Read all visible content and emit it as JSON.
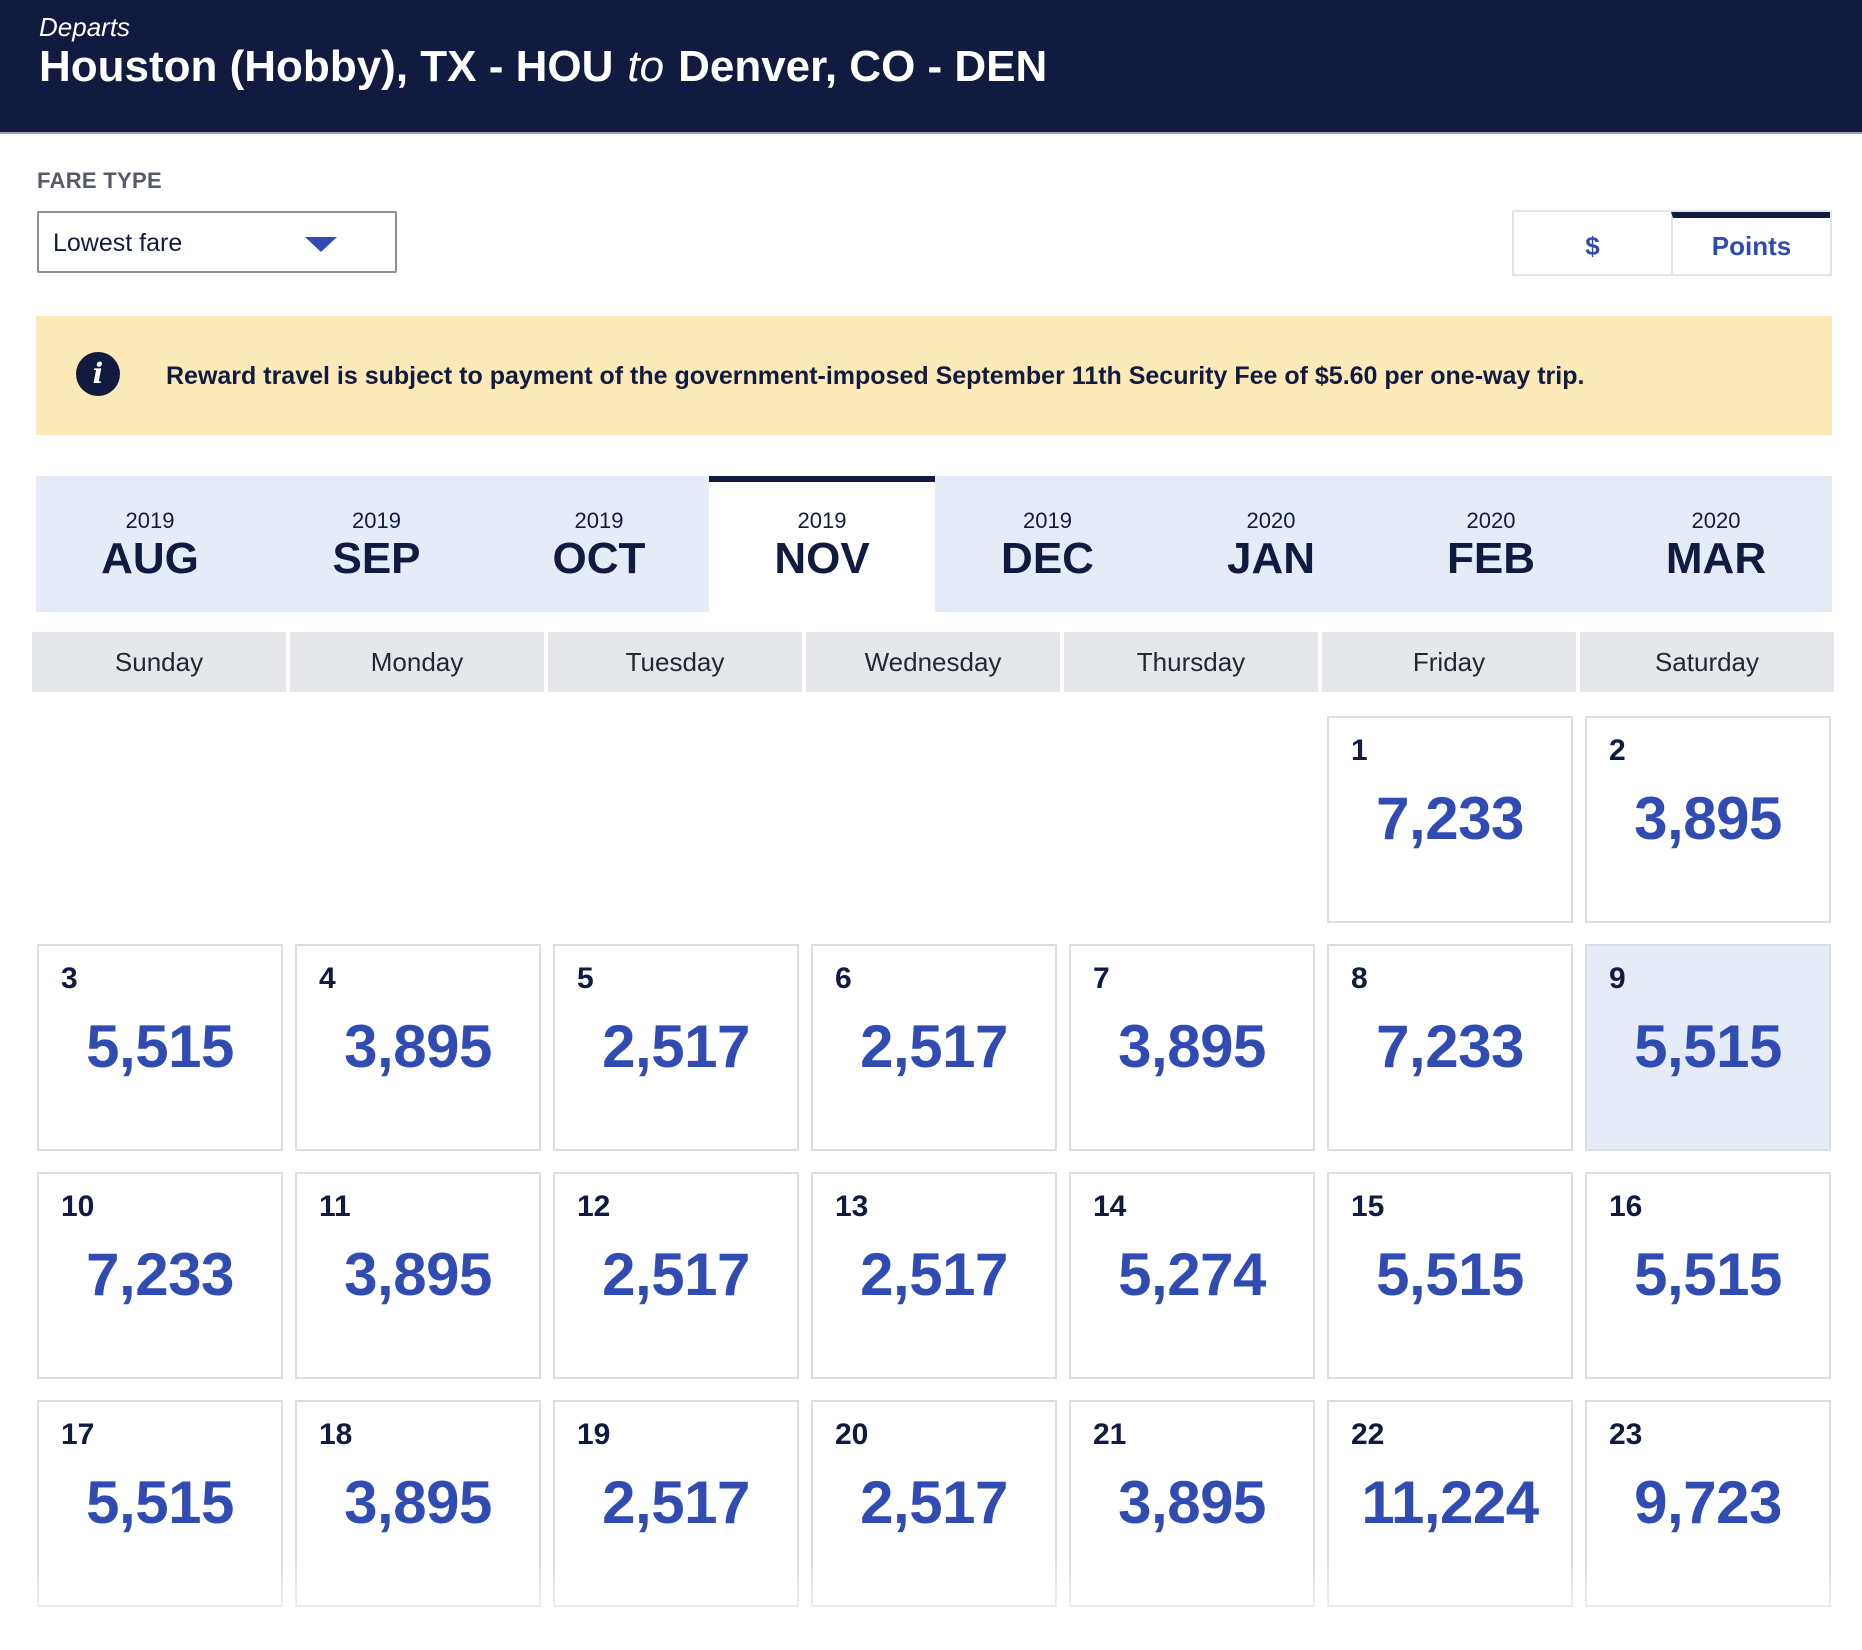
{
  "header": {
    "departs_label": "Departs",
    "origin": "Houston (Hobby), TX - HOU",
    "connector": "to",
    "destination": "Denver, CO - DEN"
  },
  "fare_type": {
    "label": "FARE TYPE",
    "selected": "Lowest fare"
  },
  "currency_toggle": {
    "options": [
      {
        "label": "$",
        "active": false
      },
      {
        "label": "Points",
        "active": true
      }
    ]
  },
  "notice": {
    "icon": "info-icon",
    "text": "Reward travel is subject to payment of the government-imposed September 11th Security Fee of $5.60 per one-way trip."
  },
  "months": [
    {
      "year": "2019",
      "month": "AUG",
      "active": false
    },
    {
      "year": "2019",
      "month": "SEP",
      "active": false
    },
    {
      "year": "2019",
      "month": "OCT",
      "active": false
    },
    {
      "year": "2019",
      "month": "NOV",
      "active": true
    },
    {
      "year": "2019",
      "month": "DEC",
      "active": false
    },
    {
      "year": "2020",
      "month": "JAN",
      "active": false
    },
    {
      "year": "2020",
      "month": "FEB",
      "active": false
    },
    {
      "year": "2020",
      "month": "MAR",
      "active": false
    }
  ],
  "weekdays": [
    "Sunday",
    "Monday",
    "Tuesday",
    "Wednesday",
    "Thursday",
    "Friday",
    "Saturday"
  ],
  "calendar": {
    "first_weekday_index": 5,
    "selected_day": "9",
    "days": [
      {
        "day": "1",
        "price": "7,233"
      },
      {
        "day": "2",
        "price": "3,895"
      },
      {
        "day": "3",
        "price": "5,515"
      },
      {
        "day": "4",
        "price": "3,895"
      },
      {
        "day": "5",
        "price": "2,517"
      },
      {
        "day": "6",
        "price": "2,517"
      },
      {
        "day": "7",
        "price": "3,895"
      },
      {
        "day": "8",
        "price": "7,233"
      },
      {
        "day": "9",
        "price": "5,515"
      },
      {
        "day": "10",
        "price": "7,233"
      },
      {
        "day": "11",
        "price": "3,895"
      },
      {
        "day": "12",
        "price": "2,517"
      },
      {
        "day": "13",
        "price": "2,517"
      },
      {
        "day": "14",
        "price": "5,274"
      },
      {
        "day": "15",
        "price": "5,515"
      },
      {
        "day": "16",
        "price": "5,515"
      },
      {
        "day": "17",
        "price": "5,515"
      },
      {
        "day": "18",
        "price": "3,895"
      },
      {
        "day": "19",
        "price": "2,517"
      },
      {
        "day": "20",
        "price": "2,517"
      },
      {
        "day": "21",
        "price": "3,895"
      },
      {
        "day": "22",
        "price": "11,224"
      },
      {
        "day": "23",
        "price": "9,723"
      }
    ]
  },
  "colors": {
    "header_bg": "#111b40",
    "accent_blue": "#304cb2",
    "notice_bg": "#fce9b8",
    "month_bar_bg": "#e6ebf8"
  }
}
